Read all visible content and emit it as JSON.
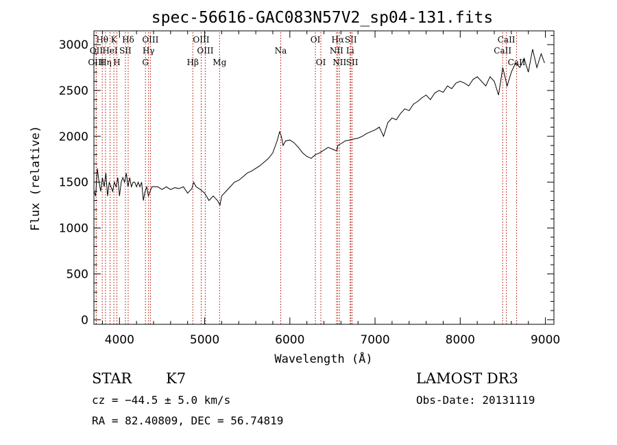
{
  "chart_data": {
    "type": "line",
    "title": "spec-56616-GAC083N57V2_sp04-131.fits",
    "xlabel": "Wavelength (Å)",
    "ylabel": "Flux (relative)",
    "xlim": [
      3700,
      9100
    ],
    "ylim": [
      -50,
      3150
    ],
    "xticks": [
      4000,
      5000,
      6000,
      7000,
      8000,
      9000
    ],
    "yticks": [
      0,
      500,
      1000,
      1500,
      2000,
      2500,
      3000
    ],
    "grid": false,
    "spectrum": {
      "x": [
        3700,
        3720,
        3740,
        3760,
        3780,
        3800,
        3820,
        3840,
        3860,
        3880,
        3900,
        3920,
        3940,
        3960,
        3980,
        4000,
        4020,
        4040,
        4060,
        4080,
        4100,
        4120,
        4140,
        4160,
        4180,
        4200,
        4220,
        4240,
        4260,
        4280,
        4300,
        4320,
        4340,
        4360,
        4380,
        4400,
        4450,
        4500,
        4550,
        4600,
        4650,
        4700,
        4750,
        4800,
        4850,
        4870,
        4900,
        4950,
        5000,
        5050,
        5100,
        5150,
        5180,
        5200,
        5250,
        5300,
        5350,
        5400,
        5450,
        5500,
        5550,
        5600,
        5650,
        5700,
        5750,
        5800,
        5850,
        5880,
        5900,
        5920,
        5950,
        6000,
        6050,
        6100,
        6150,
        6200,
        6250,
        6300,
        6350,
        6400,
        6450,
        6500,
        6550,
        6563,
        6600,
        6650,
        6700,
        6750,
        6800,
        6850,
        6900,
        6950,
        7000,
        7050,
        7100,
        7150,
        7200,
        7250,
        7300,
        7350,
        7400,
        7450,
        7500,
        7550,
        7600,
        7650,
        7700,
        7750,
        7800,
        7850,
        7900,
        7950,
        8000,
        8050,
        8100,
        8150,
        8200,
        8250,
        8300,
        8350,
        8400,
        8450,
        8500,
        8550,
        8600,
        8650,
        8700,
        8750,
        8800,
        8850,
        8900,
        8950,
        8990
      ],
      "y": [
        1400,
        1350,
        1650,
        1500,
        1400,
        1550,
        1450,
        1600,
        1350,
        1500,
        1450,
        1400,
        1500,
        1450,
        1550,
        1350,
        1500,
        1550,
        1500,
        1600,
        1450,
        1550,
        1450,
        1500,
        1500,
        1450,
        1500,
        1450,
        1500,
        1300,
        1400,
        1450,
        1350,
        1400,
        1450,
        1450,
        1450,
        1420,
        1450,
        1420,
        1440,
        1430,
        1450,
        1380,
        1430,
        1500,
        1450,
        1420,
        1380,
        1300,
        1350,
        1300,
        1250,
        1350,
        1400,
        1450,
        1500,
        1520,
        1560,
        1600,
        1620,
        1650,
        1680,
        1720,
        1760,
        1820,
        1950,
        2050,
        2000,
        1900,
        1950,
        1960,
        1930,
        1880,
        1820,
        1780,
        1760,
        1800,
        1820,
        1850,
        1880,
        1860,
        1840,
        1900,
        1920,
        1950,
        1960,
        1970,
        1980,
        2000,
        2030,
        2050,
        2070,
        2100,
        2000,
        2150,
        2200,
        2180,
        2250,
        2300,
        2280,
        2350,
        2380,
        2420,
        2450,
        2400,
        2470,
        2500,
        2480,
        2550,
        2520,
        2580,
        2600,
        2580,
        2550,
        2620,
        2650,
        2600,
        2550,
        2650,
        2600,
        2450,
        2750,
        2550,
        2700,
        2800,
        2750,
        2850,
        2700,
        2950,
        2750,
        2900,
        2800
      ]
    },
    "lines": [
      {
        "label": "Hθ",
        "wave": 3798,
        "row": 1
      },
      {
        "label": "OII",
        "wave": 3727,
        "row": 2
      },
      {
        "label": "OIII",
        "wave": 3727,
        "row": 3
      },
      {
        "label": "Hη",
        "wave": 3836,
        "row": 3
      },
      {
        "label": "HeI",
        "wave": 3889,
        "row": 2
      },
      {
        "label": "K",
        "wave": 3934,
        "row": 1
      },
      {
        "label": "H",
        "wave": 3969,
        "row": 3
      },
      {
        "label": "SII",
        "wave": 4069,
        "row": 2
      },
      {
        "label": "Hδ",
        "wave": 4102,
        "row": 1
      },
      {
        "label": "OIII",
        "wave": 4363,
        "row": 1
      },
      {
        "label": "Hγ",
        "wave": 4341,
        "row": 2
      },
      {
        "label": "G",
        "wave": 4305,
        "row": 3
      },
      {
        "label": "Hβ",
        "wave": 4861,
        "row": 3
      },
      {
        "label": "OIII",
        "wave": 4959,
        "row": 1
      },
      {
        "label": "OIII",
        "wave": 5007,
        "row": 2
      },
      {
        "label": "Mg",
        "wave": 5175,
        "row": 3
      },
      {
        "label": "Na",
        "wave": 5893,
        "row": 2
      },
      {
        "label": "OI",
        "wave": 6300,
        "row": 1
      },
      {
        "label": "OI",
        "wave": 6364,
        "row": 3
      },
      {
        "label": "Hα",
        "wave": 6563,
        "row": 1
      },
      {
        "label": "NII",
        "wave": 6548,
        "row": 2
      },
      {
        "label": "NII",
        "wave": 6583,
        "row": 3
      },
      {
        "label": "SII",
        "wave": 6716,
        "row": 1
      },
      {
        "label": "Li",
        "wave": 6708,
        "row": 2
      },
      {
        "label": "SII",
        "wave": 6731,
        "row": 3
      },
      {
        "label": "CaII",
        "wave": 8542,
        "row": 1
      },
      {
        "label": "CaII",
        "wave": 8498,
        "row": 2
      },
      {
        "label": "CaII",
        "wave": 8662,
        "row": 3
      }
    ]
  },
  "info": {
    "class": "STAR",
    "subclass": "K7",
    "cz": "cz = −44.5 ± 5.0 km/s",
    "radec": "RA =  82.40809, DEC =  56.74819",
    "survey": "LAMOST DR3",
    "obsdate": "Obs-Date: 20131119"
  }
}
